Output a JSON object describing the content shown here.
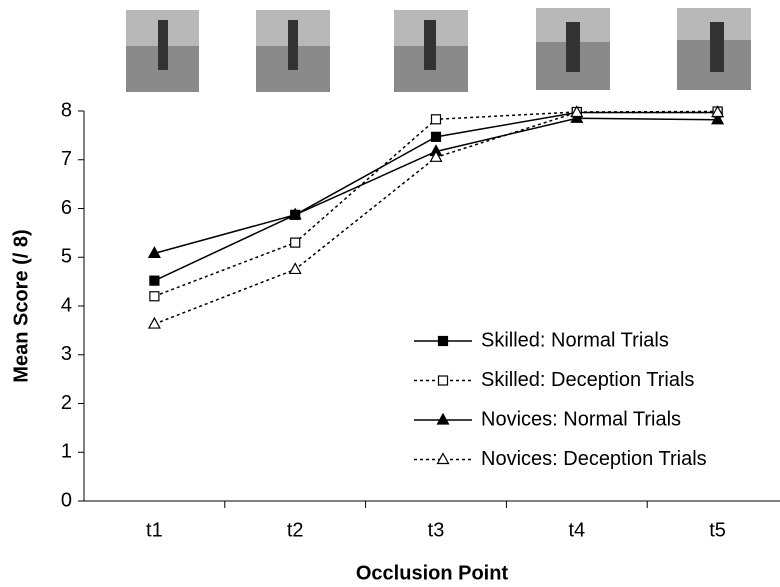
{
  "chart_data": {
    "type": "line",
    "x_label": "Occlusion Point",
    "y_label": "Mean Score (/ 8)",
    "categories": [
      "t1",
      "t2",
      "t3",
      "t4",
      "t5"
    ],
    "series": [
      {
        "name": "Skilled: Normal Trials",
        "color": "#000000",
        "dash": "solid",
        "marker": "square",
        "filled": true,
        "values": [
          4.52,
          5.87,
          7.47,
          7.97,
          7.97
        ]
      },
      {
        "name": "Skilled: Deception Trials",
        "color": "#000000",
        "dash": "dotted",
        "marker": "square",
        "filled": false,
        "values": [
          4.2,
          5.3,
          7.83,
          7.98,
          7.99
        ]
      },
      {
        "name": "Novices: Normal Trials",
        "color": "#000000",
        "dash": "solid",
        "marker": "triangle",
        "filled": true,
        "values": [
          5.08,
          5.87,
          7.17,
          7.85,
          7.82
        ]
      },
      {
        "name": "Novices: Deception Trials",
        "color": "#000000",
        "dash": "dotted",
        "marker": "triangle",
        "filled": false,
        "values": [
          3.63,
          4.75,
          7.05,
          7.97,
          7.97
        ]
      }
    ],
    "ylim": [
      0,
      8
    ],
    "yticks": [
      0,
      1,
      2,
      3,
      4,
      5,
      6,
      7,
      8
    ],
    "grid": false,
    "legend": "lower right"
  }
}
